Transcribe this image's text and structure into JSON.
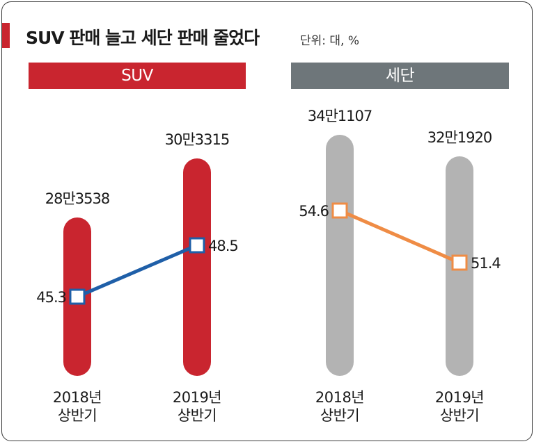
{
  "title": "SUV 판매 늘고 세단 판매 줄었다",
  "unit_note": "단위: 대, %",
  "colors": {
    "suv": "#c9252f",
    "sedan": "#6e767a",
    "sedan_bar": "#b3b3b3",
    "suv_line": "#1f5fa8",
    "sedan_line": "#ef8c45"
  },
  "chart_data": [
    {
      "type": "bar",
      "title": "SUV",
      "categories": [
        "2018년\n상반기",
        "2019년\n상반기"
      ],
      "bar_labels": [
        "28만3538",
        "30만3315"
      ],
      "values": [
        283538,
        303315
      ],
      "share_labels": [
        "45.3",
        "48.5"
      ],
      "share": [
        45.3,
        48.5
      ]
    },
    {
      "type": "bar",
      "title": "세단",
      "categories": [
        "2018년\n상반기",
        "2019년\n상반기"
      ],
      "bar_labels": [
        "34만1107",
        "32만1920"
      ],
      "values": [
        341107,
        321920
      ],
      "share_labels": [
        "54.6",
        "51.4"
      ],
      "share": [
        54.6,
        51.4
      ]
    }
  ]
}
